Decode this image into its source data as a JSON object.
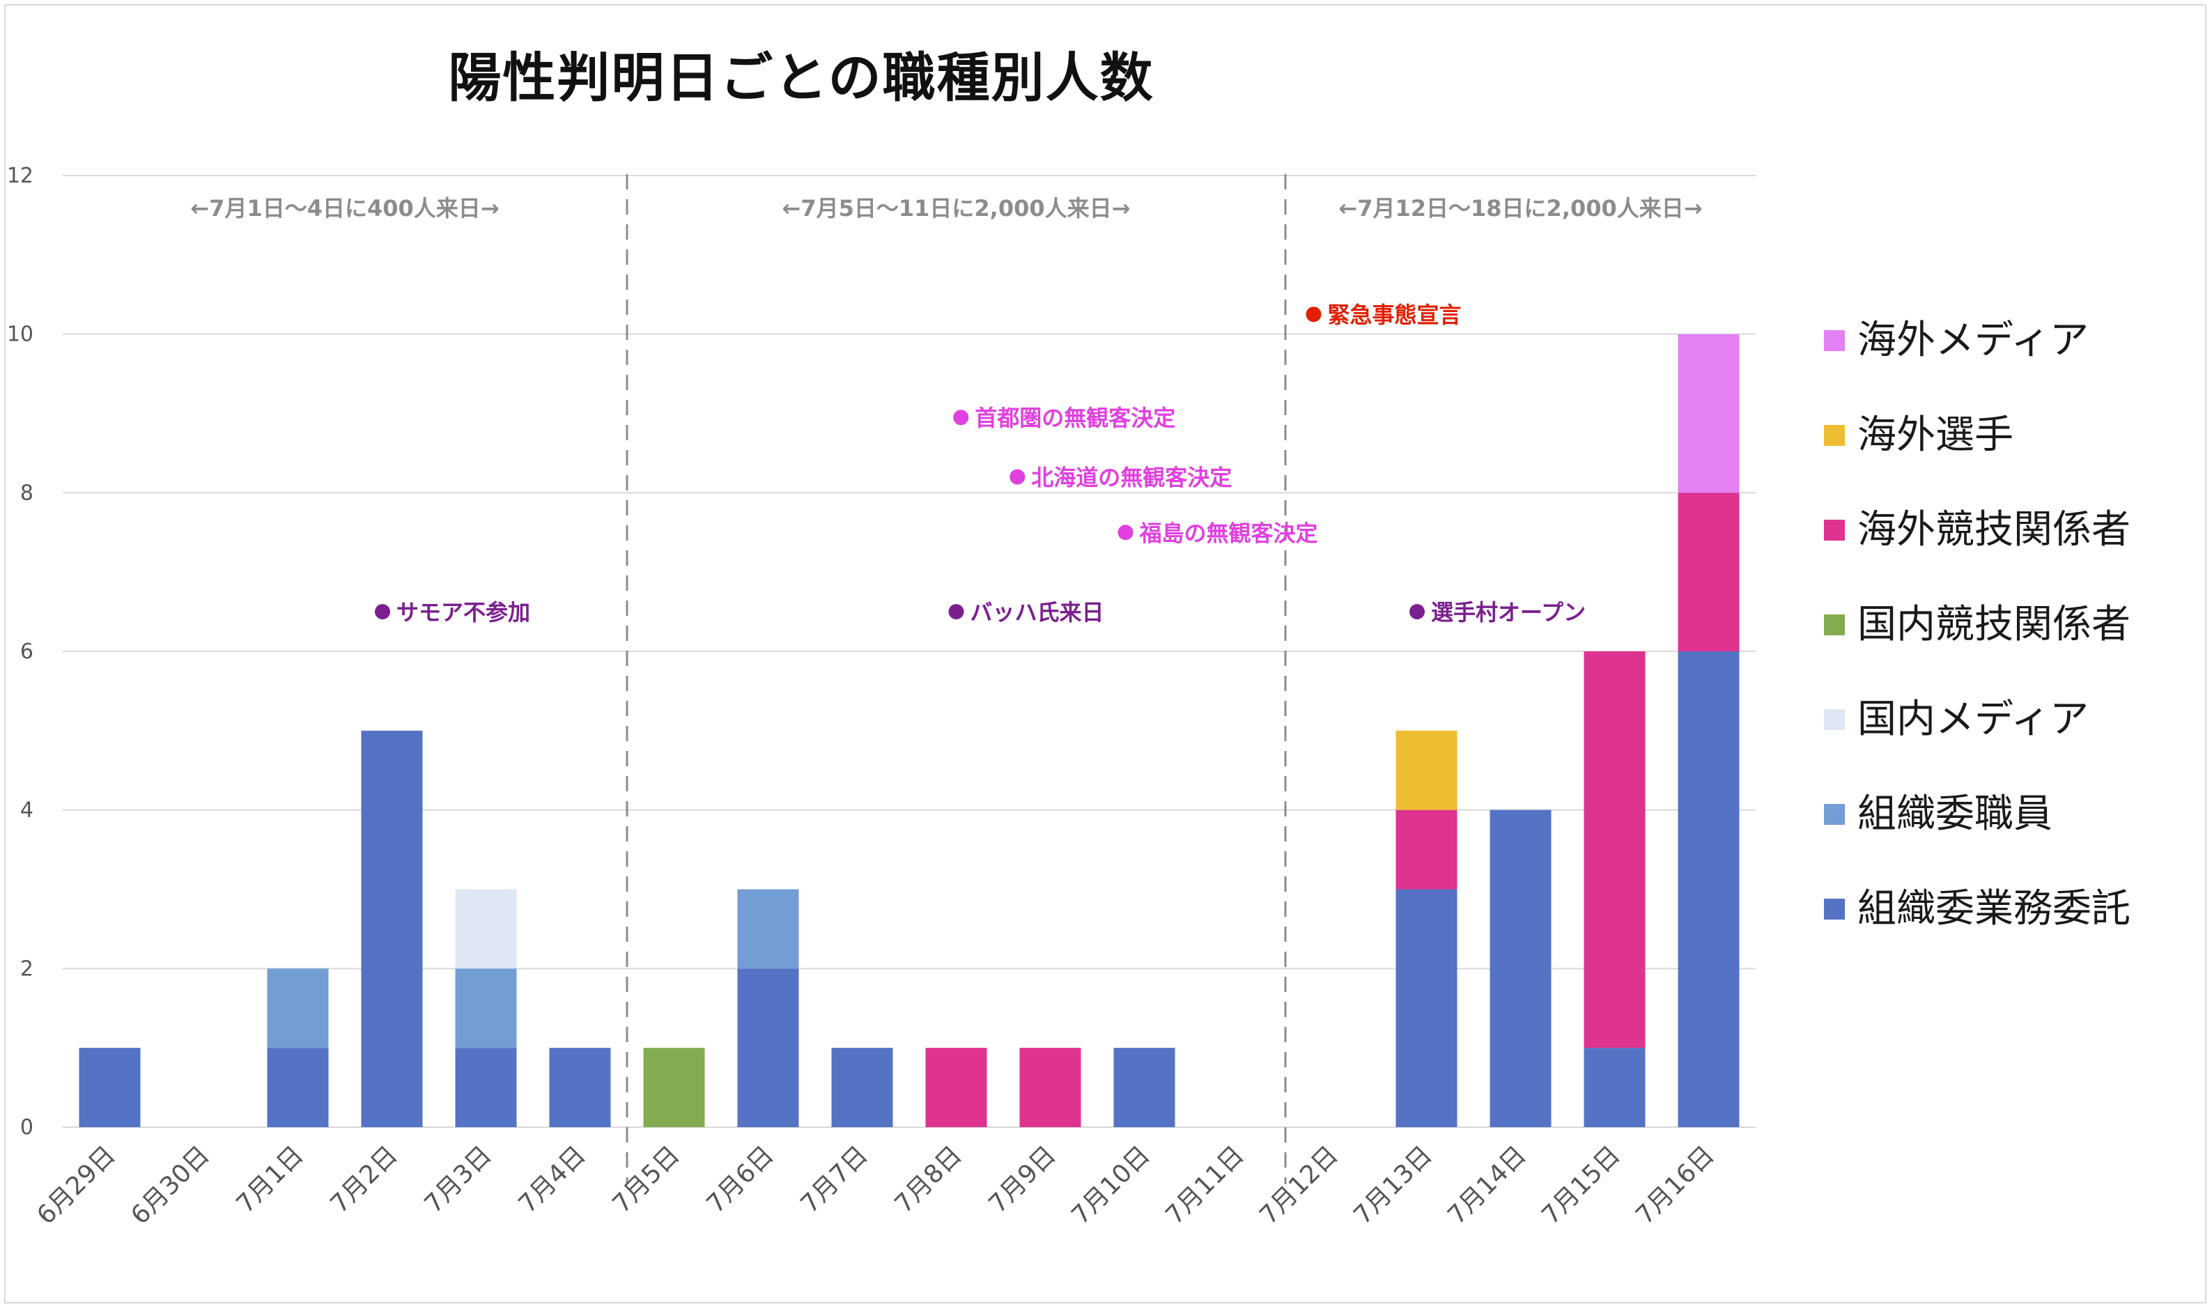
{
  "title": "陽性判明日ごとの職種別人数",
  "colors": {
    "grid": "#d9d9d9",
    "axis_text": "#555555",
    "divider": "#8c8c8c",
    "annotation_gray": "#8c8c8c",
    "event_purple": "#7b1f8f",
    "event_magenta": "#e040e0",
    "event_red": "#e02000"
  },
  "chart_data": {
    "type": "bar",
    "stacked": true,
    "categories": [
      "6月29日",
      "6月30日",
      "7月1日",
      "7月2日",
      "7月3日",
      "7月4日",
      "7月5日",
      "7月6日",
      "7月7日",
      "7月8日",
      "7月9日",
      "7月10日",
      "7月11日",
      "7月12日",
      "7月13日",
      "7月14日",
      "7月15日",
      "7月16日"
    ],
    "ylim": [
      0,
      12
    ],
    "yticks": [
      0,
      2,
      4,
      6,
      8,
      10,
      12
    ],
    "grid": true,
    "legend_position": "right",
    "series": [
      {
        "name": "組織委業務委託",
        "color": "#5573c4",
        "values": [
          1,
          0,
          1,
          5,
          1,
          1,
          0,
          2,
          1,
          0,
          0,
          1,
          0,
          0,
          3,
          4,
          1,
          6
        ]
      },
      {
        "name": "組織委職員",
        "color": "#729dd5",
        "values": [
          0,
          0,
          1,
          0,
          1,
          0,
          0,
          1,
          0,
          0,
          0,
          0,
          0,
          0,
          0,
          0,
          0,
          0
        ]
      },
      {
        "name": "国内メディア",
        "color": "#dfe6f4",
        "values": [
          0,
          0,
          0,
          0,
          1,
          0,
          0,
          0,
          0,
          0,
          0,
          0,
          0,
          0,
          0,
          0,
          0,
          0
        ]
      },
      {
        "name": "国内競技関係者",
        "color": "#82ac4f",
        "values": [
          0,
          0,
          0,
          0,
          0,
          0,
          1,
          0,
          0,
          0,
          0,
          0,
          0,
          0,
          0,
          0,
          0,
          0
        ]
      },
      {
        "name": "海外競技関係者",
        "color": "#de338e",
        "values": [
          0,
          0,
          0,
          0,
          0,
          0,
          0,
          0,
          0,
          1,
          1,
          0,
          0,
          0,
          1,
          0,
          5,
          2
        ]
      },
      {
        "name": "海外選手",
        "color": "#efbd31",
        "values": [
          0,
          0,
          0,
          0,
          0,
          0,
          0,
          0,
          0,
          0,
          0,
          0,
          0,
          0,
          1,
          0,
          0,
          0
        ]
      },
      {
        "name": "海外メディア",
        "color": "#e280f4",
        "values": [
          0,
          0,
          0,
          0,
          0,
          0,
          0,
          0,
          0,
          0,
          0,
          0,
          0,
          0,
          0,
          0,
          0,
          2
        ]
      }
    ],
    "legend_order": [
      "海外メディア",
      "海外選手",
      "海外競技関係者",
      "国内競技関係者",
      "国内メディア",
      "組織委職員",
      "組織委業務委託"
    ],
    "period_labels": [
      {
        "text": "←7月1日〜4日に400人来日→",
        "span": [
          0,
          5
        ]
      },
      {
        "text": "←7月5日〜11日に2,000人来日→",
        "span": [
          6,
          12
        ]
      },
      {
        "text": "←7月12日〜18日に2,000人来日→",
        "span": [
          13,
          17
        ]
      }
    ],
    "dividers_after": [
      5,
      12
    ],
    "events": [
      {
        "text": "緊急事態宣言",
        "color_key": "event_red",
        "x": 13.3,
        "y": 10.25
      },
      {
        "text": "首都圏の無観客決定",
        "color_key": "event_magenta",
        "x": 9.55,
        "y": 8.95
      },
      {
        "text": "北海道の無観客決定",
        "color_key": "event_magenta",
        "x": 10.15,
        "y": 8.2
      },
      {
        "text": "福島の無観客決定",
        "color_key": "event_magenta",
        "x": 11.3,
        "y": 7.5
      },
      {
        "text": "サモア不参加",
        "color_key": "event_purple",
        "x": 3.4,
        "y": 6.5
      },
      {
        "text": "バッハ氏来日",
        "color_key": "event_purple",
        "x": 9.5,
        "y": 6.5
      },
      {
        "text": "選手村オープン",
        "color_key": "event_purple",
        "x": 14.4,
        "y": 6.5
      }
    ]
  }
}
